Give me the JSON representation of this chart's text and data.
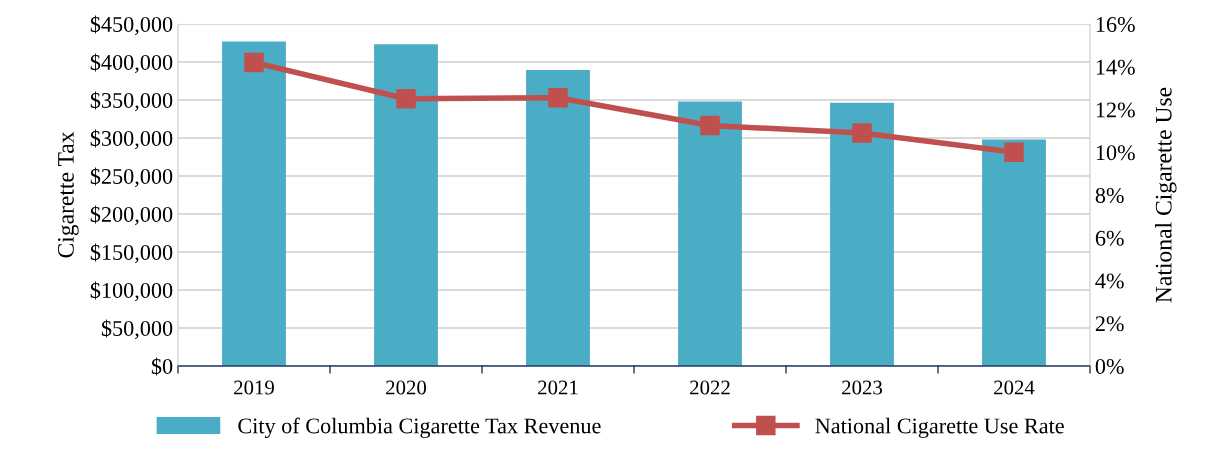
{
  "chart_data": {
    "type": "bar",
    "ylabel": "Cigarette Tax",
    "y2label": "National Cigarette Use",
    "categories": [
      "2019",
      "2020",
      "2021",
      "2022",
      "2023",
      "2024"
    ],
    "series": [
      {
        "name": "City of Columbia Cigarette Tax Revenue",
        "color": "#4bacc6",
        "values": [
          427000,
          423500,
          389500,
          348000,
          346300,
          298000
        ]
      },
      {
        "name": "National Cigarette Use Rate",
        "type": "line",
        "axis": "y2",
        "color": "#c0504d",
        "marker": "square",
        "values": [
          14.2,
          12.5,
          12.55,
          11.25,
          10.9,
          10.0
        ]
      }
    ],
    "ylim": [
      0,
      450000
    ],
    "yticks": [
      {
        "value": 0,
        "label": "$0"
      },
      {
        "value": 50000,
        "label": "$50,000"
      },
      {
        "value": 100000,
        "label": "$100,000"
      },
      {
        "value": 150000,
        "label": "$150,000"
      },
      {
        "value": 200000,
        "label": "$200,000"
      },
      {
        "value": 250000,
        "label": "$250,000"
      },
      {
        "value": 300000,
        "label": "$300,000"
      },
      {
        "value": 350000,
        "label": "$350,000"
      },
      {
        "value": 400000,
        "label": "$400,000"
      },
      {
        "value": 450000,
        "label": "$450,000"
      }
    ],
    "y2lim": [
      0,
      16
    ],
    "y2ticks": [
      {
        "value": 0,
        "label": "0%"
      },
      {
        "value": 2,
        "label": "2%"
      },
      {
        "value": 4,
        "label": "4%"
      },
      {
        "value": 6,
        "label": "6%"
      },
      {
        "value": 8,
        "label": "8%"
      },
      {
        "value": 10,
        "label": "10%"
      },
      {
        "value": 12,
        "label": "12%"
      },
      {
        "value": 14,
        "label": "14%"
      },
      {
        "value": 16,
        "label": "16%"
      }
    ],
    "grid": "y",
    "legend": "bottom"
  }
}
